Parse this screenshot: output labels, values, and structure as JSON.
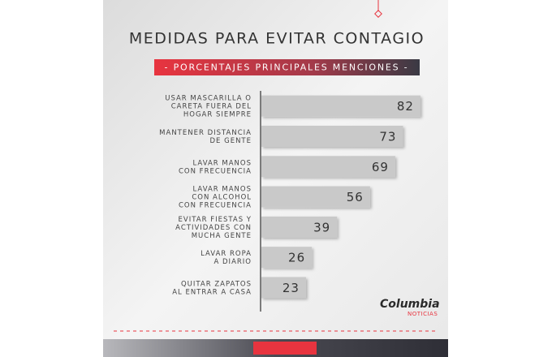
{
  "chart_data": {
    "type": "barh",
    "title": "MEDIDAS PARA EVITAR CONTAGIO",
    "subtitle": "- PORCENTAJES PRINCIPALES MENCIONES -",
    "categories": [
      "USAR MASCARILLA O\nCARETA FUERA DEL\nHOGAR SIEMPRE",
      "MANTENER DISTANCIA\nDE GENTE",
      "LAVAR MANOS\nCON FRECUENCIA",
      "LAVAR MANOS\nCON ALCOHOL\nCON FRECUENCIA",
      "EVITAR FIESTAS Y\nACTIVIDADES CON\nMUCHA GENTE",
      "LAVAR ROPA\nA DIARIO",
      "QUITAR ZAPATOS\nAL ENTRAR A CASA"
    ],
    "values": [
      82,
      73,
      69,
      56,
      39,
      26,
      23
    ],
    "color": "#c9c9c9",
    "xlim": [
      0,
      100
    ],
    "logo": {
      "name": "Columbia",
      "tagline": "NOTICIAS"
    }
  }
}
